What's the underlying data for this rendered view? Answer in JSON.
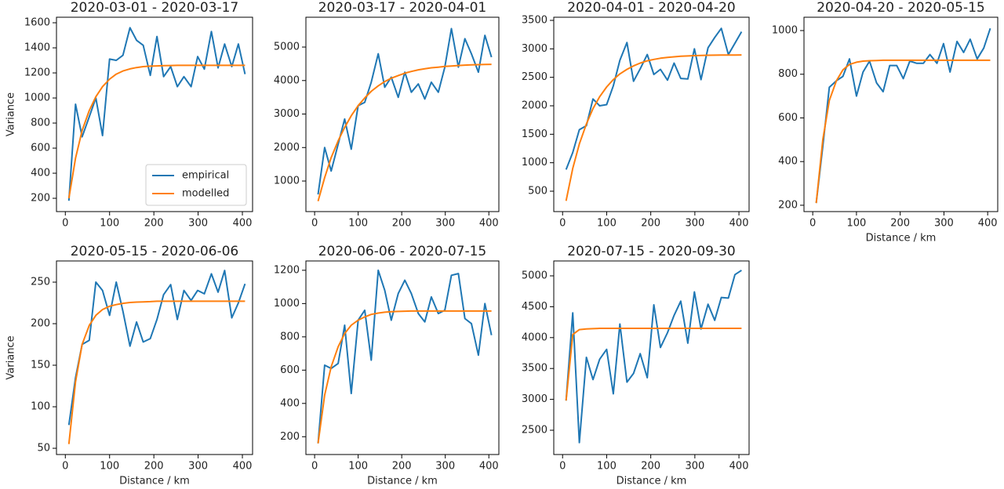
{
  "chart_data": [
    {
      "type": "line",
      "title": "2020-03-01 - 2020-03-17",
      "y_label": "Variance",
      "legend": "lower right",
      "x": [
        8,
        23,
        38,
        54,
        69,
        84,
        100,
        115,
        130,
        146,
        161,
        176,
        192,
        207,
        222,
        238,
        253,
        268,
        284,
        299,
        314,
        330,
        345,
        360,
        376,
        391,
        406
      ],
      "series": [
        {
          "name": "empirical",
          "color": "#1f77b4",
          "values": [
            180,
            950,
            690,
            850,
            1000,
            700,
            1310,
            1300,
            1340,
            1560,
            1460,
            1420,
            1180,
            1490,
            1170,
            1250,
            1090,
            1170,
            1090,
            1330,
            1230,
            1530,
            1240,
            1430,
            1250,
            1430,
            1190
          ]
        },
        {
          "name": "modelled",
          "color": "#ff7f0e",
          "values": [
            200,
            520,
            740,
            900,
            1010,
            1090,
            1150,
            1190,
            1215,
            1232,
            1243,
            1250,
            1254,
            1256,
            1258,
            1259,
            1260,
            1260,
            1260,
            1260,
            1260,
            1260,
            1260,
            1260,
            1260,
            1260,
            1260
          ]
        }
      ],
      "xlim": [
        -20,
        423
      ],
      "xticks": [
        0,
        100,
        200,
        300,
        400
      ],
      "ylim": [
        94,
        1644
      ],
      "yticks": [
        200,
        400,
        600,
        800,
        1000,
        1200,
        1400,
        1600
      ]
    },
    {
      "type": "line",
      "title": "2020-03-17 - 2020-04-01",
      "x": [
        8,
        23,
        38,
        54,
        69,
        84,
        100,
        115,
        130,
        146,
        161,
        176,
        192,
        207,
        222,
        238,
        253,
        268,
        284,
        299,
        314,
        330,
        345,
        360,
        376,
        391,
        406
      ],
      "series": [
        {
          "name": "empirical",
          "color": "#1f77b4",
          "values": [
            600,
            2000,
            1300,
            2100,
            2850,
            1950,
            3250,
            3350,
            3950,
            4800,
            3800,
            4100,
            3500,
            4250,
            3650,
            3900,
            3450,
            3950,
            3650,
            4400,
            5550,
            4400,
            5250,
            4800,
            4250,
            5350,
            4700
          ]
        },
        {
          "name": "modelled",
          "color": "#ff7f0e",
          "values": [
            400,
            1100,
            1700,
            2200,
            2600,
            2950,
            3250,
            3480,
            3680,
            3840,
            3970,
            4070,
            4150,
            4220,
            4270,
            4320,
            4350,
            4380,
            4400,
            4420,
            4435,
            4450,
            4460,
            4470,
            4475,
            4480,
            4485
          ]
        }
      ],
      "xlim": [
        -20,
        423
      ],
      "xticks": [
        0,
        100,
        200,
        300,
        400
      ],
      "ylim": [
        88,
        5890
      ],
      "yticks": [
        1000,
        2000,
        3000,
        4000,
        5000
      ]
    },
    {
      "type": "line",
      "title": "2020-04-01 - 2020-04-20",
      "x": [
        8,
        23,
        38,
        54,
        69,
        84,
        100,
        115,
        130,
        146,
        161,
        176,
        192,
        207,
        222,
        238,
        253,
        268,
        284,
        299,
        314,
        330,
        345,
        360,
        376,
        391,
        406
      ],
      "series": [
        {
          "name": "empirical",
          "color": "#1f77b4",
          "values": [
            880,
            1180,
            1580,
            1650,
            2120,
            2000,
            2020,
            2350,
            2800,
            3110,
            2430,
            2650,
            2900,
            2550,
            2640,
            2450,
            2750,
            2480,
            2470,
            3000,
            2460,
            3020,
            3200,
            3360,
            2900,
            3100,
            3300
          ]
        },
        {
          "name": "modelled",
          "color": "#ff7f0e",
          "values": [
            330,
            900,
            1330,
            1680,
            1950,
            2160,
            2330,
            2460,
            2560,
            2640,
            2700,
            2750,
            2790,
            2815,
            2835,
            2850,
            2860,
            2870,
            2875,
            2880,
            2884,
            2887,
            2889,
            2890,
            2891,
            2892,
            2893
          ]
        }
      ],
      "xlim": [
        -20,
        423
      ],
      "xticks": [
        0,
        100,
        200,
        300,
        400
      ],
      "ylim": [
        142,
        3555
      ],
      "yticks": [
        500,
        1000,
        1500,
        2000,
        2500,
        3000,
        3500
      ]
    },
    {
      "type": "line",
      "title": "2020-04-20 - 2020-05-15",
      "x_label": "Distance / km",
      "x": [
        8,
        23,
        38,
        54,
        69,
        84,
        100,
        115,
        130,
        146,
        161,
        176,
        192,
        207,
        222,
        238,
        253,
        268,
        284,
        299,
        314,
        330,
        345,
        360,
        376,
        391,
        406
      ],
      "series": [
        {
          "name": "empirical",
          "color": "#1f77b4",
          "values": [
            210,
            470,
            740,
            770,
            790,
            870,
            700,
            810,
            860,
            760,
            720,
            840,
            840,
            780,
            860,
            850,
            850,
            890,
            850,
            940,
            810,
            950,
            900,
            960,
            870,
            920,
            1010
          ]
        },
        {
          "name": "modelled",
          "color": "#ff7f0e",
          "values": [
            210,
            500,
            680,
            770,
            820,
            845,
            855,
            860,
            862,
            863,
            864,
            864,
            864,
            864,
            864,
            864,
            864,
            864,
            864,
            864,
            864,
            864,
            864,
            864,
            864,
            864,
            864
          ]
        }
      ],
      "xlim": [
        -20,
        423
      ],
      "xticks": [
        0,
        100,
        200,
        300,
        400
      ],
      "ylim": [
        171,
        1061
      ],
      "yticks": [
        200,
        400,
        600,
        800,
        1000
      ]
    },
    {
      "type": "line",
      "title": "2020-05-15 - 2020-06-06",
      "x_label": "Distance / km",
      "y_label": "Variance",
      "x": [
        8,
        23,
        38,
        54,
        69,
        84,
        100,
        115,
        130,
        146,
        161,
        176,
        192,
        207,
        222,
        238,
        253,
        268,
        284,
        299,
        314,
        330,
        345,
        360,
        376,
        391,
        406
      ],
      "series": [
        {
          "name": "empirical",
          "color": "#1f77b4",
          "values": [
            78,
            135,
            175,
            180,
            250,
            240,
            210,
            250,
            215,
            173,
            202,
            178,
            182,
            205,
            235,
            247,
            205,
            240,
            228,
            240,
            236,
            260,
            238,
            264,
            207,
            225,
            248
          ]
        },
        {
          "name": "modelled",
          "color": "#ff7f0e",
          "values": [
            55,
            130,
            175,
            198,
            210,
            217,
            221,
            223,
            224.5,
            225.5,
            226,
            226.3,
            226.5,
            227,
            227,
            227,
            227,
            227,
            227,
            227,
            227,
            227,
            227,
            227,
            227,
            227,
            227
          ]
        }
      ],
      "xlim": [
        -20,
        423
      ],
      "xticks": [
        0,
        100,
        200,
        300,
        400
      ],
      "ylim": [
        42.5,
        275.5
      ],
      "yticks": [
        50,
        100,
        150,
        200,
        250
      ]
    },
    {
      "type": "line",
      "title": "2020-06-06 - 2020-07-15",
      "x_label": "Distance / km",
      "x": [
        8,
        23,
        38,
        54,
        69,
        84,
        100,
        115,
        130,
        146,
        161,
        176,
        192,
        207,
        222,
        238,
        253,
        268,
        284,
        299,
        314,
        330,
        345,
        360,
        376,
        391,
        406
      ],
      "series": [
        {
          "name": "empirical",
          "color": "#1f77b4",
          "values": [
            160,
            630,
            610,
            640,
            870,
            460,
            900,
            960,
            660,
            1200,
            1080,
            900,
            1060,
            1140,
            1060,
            940,
            890,
            1040,
            940,
            960,
            1170,
            1180,
            910,
            880,
            690,
            1000,
            810
          ]
        },
        {
          "name": "modelled",
          "color": "#ff7f0e",
          "values": [
            160,
            450,
            620,
            740,
            820,
            870,
            900,
            920,
            935,
            943,
            948,
            951,
            953,
            954,
            955,
            955,
            955,
            955,
            955,
            955,
            955,
            955,
            955,
            955,
            955,
            955,
            955
          ]
        }
      ],
      "xlim": [
        -20,
        423
      ],
      "xticks": [
        0,
        100,
        200,
        300,
        400
      ],
      "ylim": [
        93,
        1256
      ],
      "yticks": [
        200,
        400,
        600,
        800,
        1000,
        1200
      ]
    },
    {
      "type": "line",
      "title": "2020-07-15 - 2020-09-30",
      "x_label": "Distance / km",
      "x": [
        8,
        23,
        38,
        54,
        69,
        84,
        100,
        115,
        130,
        146,
        161,
        176,
        192,
        207,
        222,
        238,
        253,
        268,
        284,
        299,
        314,
        330,
        345,
        360,
        376,
        391,
        406
      ],
      "series": [
        {
          "name": "empirical",
          "color": "#1f77b4",
          "values": [
            2980,
            4400,
            2300,
            3680,
            3320,
            3650,
            3810,
            3090,
            4220,
            3280,
            3420,
            3740,
            3350,
            4530,
            3840,
            4080,
            4360,
            4590,
            3910,
            4740,
            4140,
            4540,
            4280,
            4650,
            4640,
            5020,
            5090
          ]
        },
        {
          "name": "modelled",
          "color": "#ff7f0e",
          "values": [
            2980,
            4050,
            4130,
            4140,
            4145,
            4150,
            4150,
            4150,
            4150,
            4150,
            4150,
            4150,
            4150,
            4150,
            4150,
            4150,
            4150,
            4150,
            4150,
            4150,
            4150,
            4150,
            4150,
            4150,
            4150,
            4150,
            4150
          ]
        }
      ],
      "xlim": [
        -20,
        423
      ],
      "xticks": [
        0,
        100,
        200,
        300,
        400
      ],
      "ylim": [
        2107,
        5241
      ],
      "yticks": [
        2500,
        3000,
        3500,
        4000,
        4500,
        5000
      ]
    }
  ]
}
